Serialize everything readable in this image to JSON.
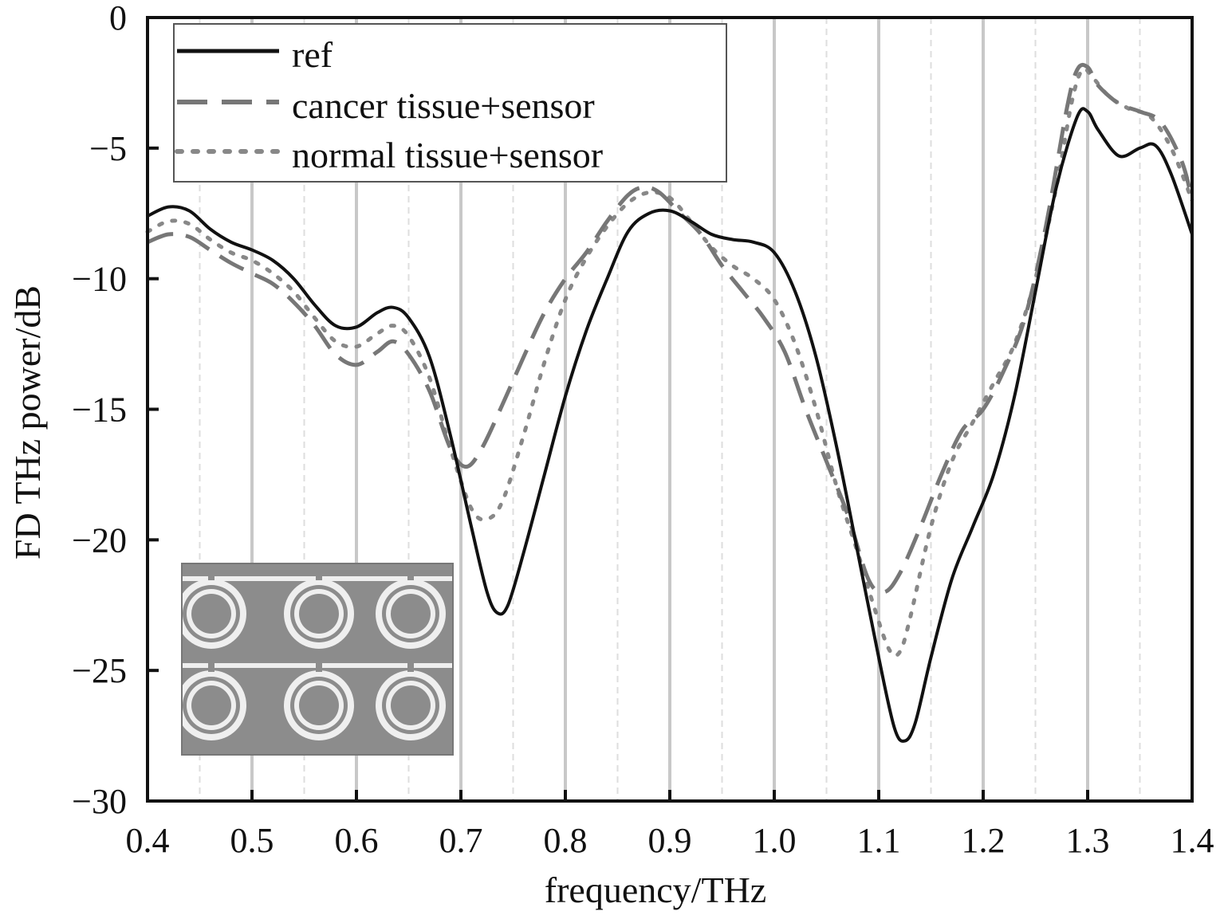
{
  "chart_data": {
    "type": "line",
    "xlabel": "frequency/THz",
    "ylabel": "FD THz power/dB",
    "xlim": [
      0.4,
      1.4
    ],
    "ylim": [
      -30,
      0
    ],
    "xticks": [
      "0.4",
      "0.5",
      "0.6",
      "0.7",
      "0.8",
      "0.9",
      "1.0",
      "1.1",
      "1.2",
      "1.3",
      "1.4"
    ],
    "yticks": [
      "0",
      "−5",
      "−10",
      "−15",
      "−20",
      "−25",
      "−30"
    ],
    "grid": "vertical",
    "legend_position": "top-left",
    "series": [
      {
        "name": "ref",
        "style": "solid",
        "color": "#111111",
        "points": [
          [
            0.4,
            -7.6
          ],
          [
            0.42,
            -7.25
          ],
          [
            0.44,
            -7.4
          ],
          [
            0.46,
            -8.1
          ],
          [
            0.48,
            -8.6
          ],
          [
            0.5,
            -8.9
          ],
          [
            0.52,
            -9.3
          ],
          [
            0.54,
            -10.0
          ],
          [
            0.56,
            -11.0
          ],
          [
            0.58,
            -11.8
          ],
          [
            0.6,
            -11.85
          ],
          [
            0.62,
            -11.3
          ],
          [
            0.635,
            -11.1
          ],
          [
            0.65,
            -11.5
          ],
          [
            0.67,
            -13.0
          ],
          [
            0.69,
            -16.0
          ],
          [
            0.71,
            -19.5
          ],
          [
            0.725,
            -22.0
          ],
          [
            0.735,
            -22.8
          ],
          [
            0.745,
            -22.5
          ],
          [
            0.76,
            -20.5
          ],
          [
            0.78,
            -17.5
          ],
          [
            0.8,
            -14.5
          ],
          [
            0.82,
            -12.0
          ],
          [
            0.84,
            -10.0
          ],
          [
            0.86,
            -8.2
          ],
          [
            0.88,
            -7.5
          ],
          [
            0.9,
            -7.4
          ],
          [
            0.92,
            -7.8
          ],
          [
            0.94,
            -8.3
          ],
          [
            0.96,
            -8.5
          ],
          [
            0.98,
            -8.6
          ],
          [
            1.0,
            -9.0
          ],
          [
            1.02,
            -10.5
          ],
          [
            1.04,
            -13.0
          ],
          [
            1.06,
            -16.5
          ],
          [
            1.08,
            -20.5
          ],
          [
            1.1,
            -24.5
          ],
          [
            1.115,
            -27.2
          ],
          [
            1.125,
            -27.7
          ],
          [
            1.135,
            -27.0
          ],
          [
            1.15,
            -24.5
          ],
          [
            1.17,
            -21.5
          ],
          [
            1.19,
            -19.5
          ],
          [
            1.21,
            -17.5
          ],
          [
            1.23,
            -14.5
          ],
          [
            1.25,
            -10.5
          ],
          [
            1.27,
            -6.5
          ],
          [
            1.29,
            -3.8
          ],
          [
            1.3,
            -3.6
          ],
          [
            1.31,
            -4.3
          ],
          [
            1.33,
            -5.3
          ],
          [
            1.35,
            -5.0
          ],
          [
            1.365,
            -4.9
          ],
          [
            1.38,
            -6.0
          ],
          [
            1.4,
            -8.3
          ]
        ]
      },
      {
        "name": "cancer tissue+sensor",
        "style": "dashed",
        "color": "#777777",
        "points": [
          [
            0.4,
            -8.6
          ],
          [
            0.42,
            -8.3
          ],
          [
            0.44,
            -8.4
          ],
          [
            0.46,
            -8.9
          ],
          [
            0.48,
            -9.4
          ],
          [
            0.5,
            -9.8
          ],
          [
            0.52,
            -10.2
          ],
          [
            0.54,
            -10.9
          ],
          [
            0.56,
            -11.8
          ],
          [
            0.58,
            -12.9
          ],
          [
            0.6,
            -13.3
          ],
          [
            0.62,
            -12.8
          ],
          [
            0.635,
            -12.4
          ],
          [
            0.65,
            -12.9
          ],
          [
            0.67,
            -14.3
          ],
          [
            0.69,
            -16.5
          ],
          [
            0.705,
            -17.2
          ],
          [
            0.72,
            -16.5
          ],
          [
            0.74,
            -14.8
          ],
          [
            0.76,
            -13.0
          ],
          [
            0.78,
            -11.3
          ],
          [
            0.8,
            -10.0
          ],
          [
            0.82,
            -9.0
          ],
          [
            0.84,
            -7.8
          ],
          [
            0.86,
            -6.8
          ],
          [
            0.875,
            -6.5
          ],
          [
            0.89,
            -6.7
          ],
          [
            0.91,
            -7.5
          ],
          [
            0.93,
            -8.3
          ],
          [
            0.95,
            -9.5
          ],
          [
            0.97,
            -10.5
          ],
          [
            0.99,
            -11.5
          ],
          [
            1.01,
            -12.8
          ],
          [
            1.03,
            -15.0
          ],
          [
            1.05,
            -17.0
          ],
          [
            1.07,
            -19.0
          ],
          [
            1.09,
            -21.5
          ],
          [
            1.105,
            -22.0
          ],
          [
            1.12,
            -21.3
          ],
          [
            1.14,
            -19.5
          ],
          [
            1.16,
            -17.5
          ],
          [
            1.18,
            -15.8
          ],
          [
            1.2,
            -15.0
          ],
          [
            1.22,
            -13.5
          ],
          [
            1.24,
            -11.5
          ],
          [
            1.26,
            -8.0
          ],
          [
            1.28,
            -3.5
          ],
          [
            1.29,
            -2.0
          ],
          [
            1.3,
            -1.9
          ],
          [
            1.31,
            -2.6
          ],
          [
            1.33,
            -3.3
          ],
          [
            1.35,
            -3.6
          ],
          [
            1.37,
            -4.0
          ],
          [
            1.39,
            -5.5
          ],
          [
            1.4,
            -7.0
          ]
        ]
      },
      {
        "name": "normal tissue+sensor",
        "style": "dotted",
        "color": "#888888",
        "points": [
          [
            0.4,
            -8.2
          ],
          [
            0.42,
            -7.8
          ],
          [
            0.44,
            -7.9
          ],
          [
            0.46,
            -8.5
          ],
          [
            0.48,
            -9.0
          ],
          [
            0.5,
            -9.3
          ],
          [
            0.52,
            -9.8
          ],
          [
            0.54,
            -10.5
          ],
          [
            0.56,
            -11.5
          ],
          [
            0.58,
            -12.4
          ],
          [
            0.6,
            -12.6
          ],
          [
            0.62,
            -12.1
          ],
          [
            0.635,
            -11.8
          ],
          [
            0.65,
            -12.2
          ],
          [
            0.67,
            -13.8
          ],
          [
            0.69,
            -16.5
          ],
          [
            0.71,
            -18.8
          ],
          [
            0.725,
            -19.2
          ],
          [
            0.74,
            -18.5
          ],
          [
            0.76,
            -16.0
          ],
          [
            0.78,
            -13.2
          ],
          [
            0.8,
            -10.8
          ],
          [
            0.82,
            -9.2
          ],
          [
            0.84,
            -8.0
          ],
          [
            0.86,
            -7.1
          ],
          [
            0.88,
            -6.7
          ],
          [
            0.9,
            -6.9
          ],
          [
            0.92,
            -7.8
          ],
          [
            0.94,
            -8.8
          ],
          [
            0.96,
            -9.5
          ],
          [
            0.98,
            -10.0
          ],
          [
            1.0,
            -10.8
          ],
          [
            1.02,
            -12.5
          ],
          [
            1.04,
            -15.0
          ],
          [
            1.06,
            -18.0
          ],
          [
            1.08,
            -20.5
          ],
          [
            1.095,
            -22.5
          ],
          [
            1.11,
            -24.2
          ],
          [
            1.12,
            -24.3
          ],
          [
            1.13,
            -23.0
          ],
          [
            1.15,
            -19.5
          ],
          [
            1.17,
            -17.0
          ],
          [
            1.19,
            -15.5
          ],
          [
            1.21,
            -14.0
          ],
          [
            1.23,
            -12.5
          ],
          [
            1.25,
            -10.0
          ],
          [
            1.27,
            -6.5
          ],
          [
            1.285,
            -3.2
          ],
          [
            1.295,
            -2.0
          ],
          [
            1.305,
            -2.3
          ],
          [
            1.32,
            -3.0
          ],
          [
            1.34,
            -3.5
          ],
          [
            1.36,
            -3.8
          ],
          [
            1.38,
            -5.0
          ],
          [
            1.4,
            -7.0
          ]
        ]
      }
    ]
  }
}
